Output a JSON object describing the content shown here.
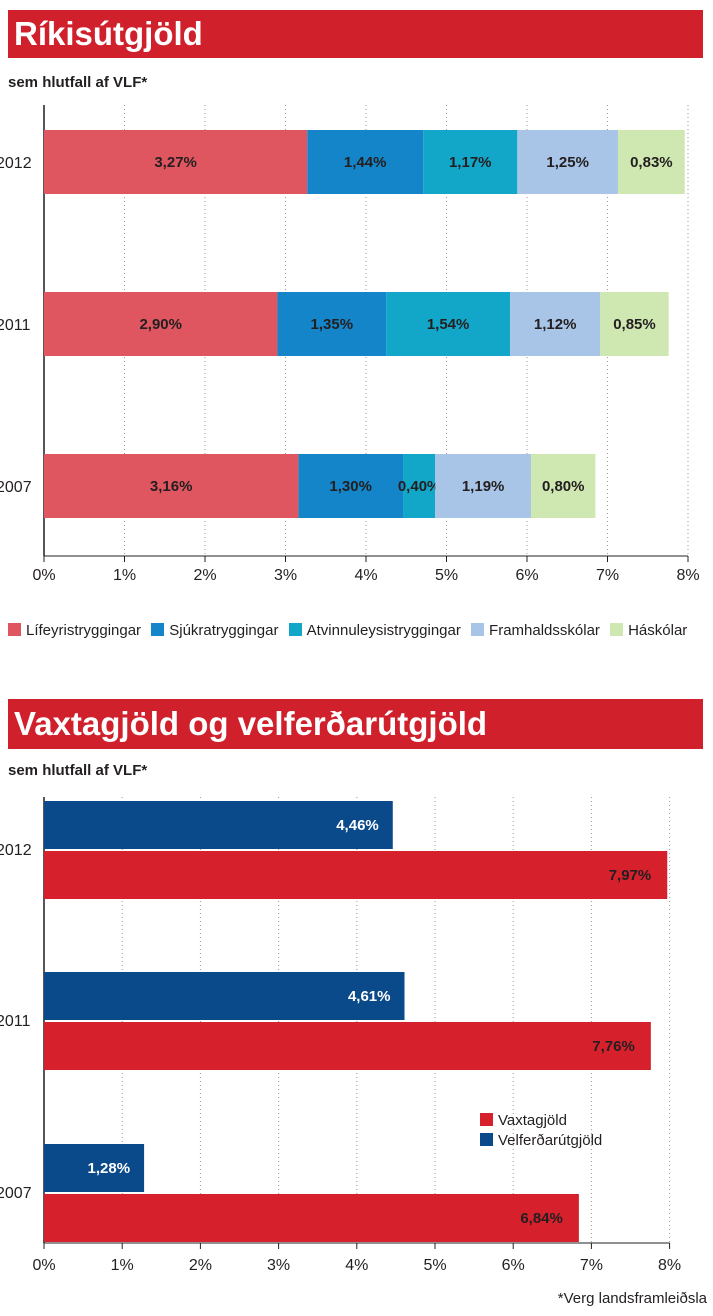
{
  "colors": {
    "banner": "#cf202b",
    "lifeyris": "#e05660",
    "sjukra": "#1485c8",
    "atvinnu": "#12a7c9",
    "framhalds": "#a8c4e6",
    "haskolar": "#cfe8b2",
    "vaxta": "#d6202c",
    "velferd": "#0b4a8a"
  },
  "chart1": {
    "title": "Ríkisútgjöld",
    "subtitle": "sem hlutfall af VLF*",
    "legend": [
      "Lífeyristryggingar",
      "Sjúkratryggingar",
      "Atvinnuleysistryggingar",
      "Framhaldsskólar",
      "Háskólar"
    ]
  },
  "chart2": {
    "title": "Vaxtagjöld og velferðarútgjöld",
    "subtitle": "sem hlutfall af VLF*",
    "legend": [
      "Vaxtagjöld",
      "Velferðarútgjöld"
    ],
    "footnote": "*Verg landsframleiðsla"
  },
  "chart_data": [
    {
      "type": "bar",
      "stacked": true,
      "orientation": "horizontal",
      "title": "Ríkisútgjöld",
      "subtitle": "sem hlutfall af VLF*",
      "categories": [
        "2012",
        "2011",
        "2007"
      ],
      "series": [
        {
          "name": "Lífeyristryggingar",
          "values": [
            3.27,
            2.9,
            3.16
          ],
          "labels": [
            "3,27%",
            "2,90%",
            "3,16%"
          ]
        },
        {
          "name": "Sjúkratryggingar",
          "values": [
            1.44,
            1.35,
            1.3
          ],
          "labels": [
            "1,44%",
            "1,35%",
            "1,30%"
          ]
        },
        {
          "name": "Atvinnuleysistryggingar",
          "values": [
            1.17,
            1.54,
            0.4
          ],
          "labels": [
            "1,17%",
            "1,54%",
            "0,40%"
          ]
        },
        {
          "name": "Framhaldsskólar",
          "values": [
            1.25,
            1.12,
            1.19
          ],
          "labels": [
            "1,25%",
            "1,12%",
            "1,19%"
          ]
        },
        {
          "name": "Háskólar",
          "values": [
            0.83,
            0.85,
            0.8
          ],
          "labels": [
            "0,83%",
            "0,85%",
            "0,80%"
          ]
        }
      ],
      "xlim": [
        0,
        8
      ],
      "xticks": [
        "0%",
        "1%",
        "2%",
        "3%",
        "4%",
        "5%",
        "6%",
        "7%",
        "8%"
      ],
      "grid": true,
      "legend_position": "bottom"
    },
    {
      "type": "bar",
      "orientation": "horizontal",
      "title": "Vaxtagjöld og velferðarútgjöld",
      "subtitle": "sem hlutfall af VLF*",
      "categories": [
        "2012",
        "2011",
        "2007"
      ],
      "series": [
        {
          "name": "Velferðarútgjöld",
          "values": [
            4.46,
            4.61,
            1.28
          ],
          "labels": [
            "4,46%",
            "4,61%",
            "1,28%"
          ]
        },
        {
          "name": "Vaxtagjöld",
          "values": [
            7.97,
            7.76,
            6.84
          ],
          "labels": [
            "7,97%",
            "7,76%",
            "6,84%"
          ]
        }
      ],
      "xlim": [
        0,
        8
      ],
      "xticks": [
        "0%",
        "1%",
        "2%",
        "3%",
        "4%",
        "5%",
        "6%",
        "7%",
        "8%"
      ],
      "grid": true,
      "legend_position": "right"
    }
  ]
}
